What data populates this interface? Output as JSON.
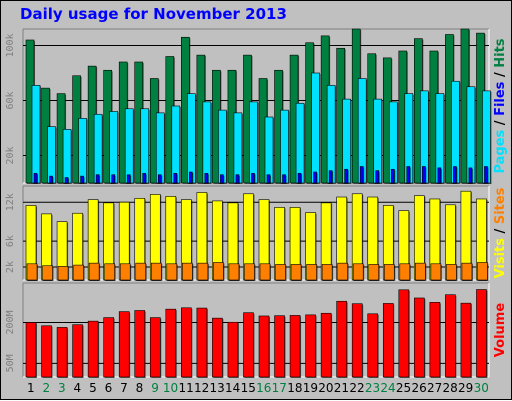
{
  "title": "Daily usage for November 2013",
  "colors": {
    "hits": "#008040",
    "files": "#0000ff",
    "pages": "#00e0ff",
    "visits": "#ffff00",
    "sites": "#ff8000",
    "volume": "#ff0000",
    "weekday_label": "#000000",
    "weekend_label": "#008040"
  },
  "chart_data": [
    {
      "type": "bar",
      "title": "Daily usage for November 2013",
      "categories": [
        "1",
        "2",
        "3",
        "4",
        "5",
        "6",
        "7",
        "8",
        "9",
        "10",
        "11",
        "12",
        "13",
        "14",
        "15",
        "16",
        "17",
        "18",
        "19",
        "20",
        "21",
        "22",
        "23",
        "24",
        "25",
        "26",
        "27",
        "28",
        "29",
        "30"
      ],
      "yticks": [
        {
          "value": 20000,
          "label": "20k"
        },
        {
          "value": 60000,
          "label": "60k"
        },
        {
          "value": 100000,
          "label": "100k"
        }
      ],
      "ylim": [
        0,
        112000
      ],
      "grid": true,
      "side_label": [
        {
          "text": "Pages",
          "color": "#00e0ff"
        },
        {
          "text": " / ",
          "color": "#000000"
        },
        {
          "text": "Files",
          "color": "#0000ff"
        },
        {
          "text": " / ",
          "color": "#000000"
        },
        {
          "text": "Hits",
          "color": "#008040"
        }
      ],
      "series": [
        {
          "name": "Hits",
          "values": [
            104000,
            69000,
            65000,
            78000,
            85000,
            82000,
            88000,
            88000,
            76000,
            92000,
            106000,
            93000,
            82000,
            82000,
            93000,
            76000,
            82000,
            93000,
            102000,
            107000,
            98000,
            112000,
            94000,
            91000,
            96000,
            105000,
            96000,
            108000,
            112000,
            109000
          ]
        },
        {
          "name": "Pages",
          "values": [
            71000,
            41000,
            39000,
            47000,
            50000,
            52000,
            54000,
            54000,
            51000,
            56000,
            65000,
            59000,
            53000,
            51000,
            59000,
            48000,
            53000,
            58000,
            80000,
            71000,
            61000,
            76000,
            61000,
            59000,
            65000,
            67000,
            65000,
            74000,
            70000,
            67000
          ]
        },
        {
          "name": "Files",
          "values": [
            7000,
            5000,
            4000,
            5000,
            6000,
            6000,
            6000,
            7000,
            6000,
            7000,
            8000,
            7000,
            6000,
            6000,
            7000,
            6000,
            6000,
            7000,
            8000,
            9000,
            10000,
            12000,
            9000,
            10000,
            12000,
            12000,
            11000,
            12000,
            11000,
            12000
          ]
        }
      ]
    },
    {
      "type": "bar",
      "categories": [
        "1",
        "2",
        "3",
        "4",
        "5",
        "6",
        "7",
        "8",
        "9",
        "10",
        "11",
        "12",
        "13",
        "14",
        "15",
        "16",
        "17",
        "18",
        "19",
        "20",
        "21",
        "22",
        "23",
        "24",
        "25",
        "26",
        "27",
        "28",
        "29",
        "30"
      ],
      "yticks": [
        {
          "value": 2000,
          "label": "2k"
        },
        {
          "value": 6000,
          "label": "6k"
        },
        {
          "value": 12000,
          "label": "12k"
        }
      ],
      "ylim": [
        0,
        14500
      ],
      "grid": true,
      "side_label": [
        {
          "text": "Visits",
          "color": "#ffff00"
        },
        {
          "text": " / ",
          "color": "#000000"
        },
        {
          "text": "Sites",
          "color": "#ff8000"
        }
      ],
      "series": [
        {
          "name": "Visits",
          "values": [
            11500,
            10200,
            9000,
            10300,
            12400,
            11900,
            12000,
            12600,
            13200,
            12900,
            12400,
            13500,
            12200,
            11900,
            13300,
            12400,
            11200,
            11200,
            10400,
            11900,
            12800,
            13300,
            12800,
            11500,
            10700,
            13000,
            12500,
            11600,
            13700,
            12500
          ]
        },
        {
          "name": "Sites",
          "values": [
            2500,
            2200,
            2100,
            2300,
            2600,
            2500,
            2500,
            2600,
            2600,
            2500,
            2600,
            2600,
            2700,
            2500,
            2500,
            2500,
            2400,
            2400,
            2400,
            2400,
            2600,
            2500,
            2400,
            2400,
            2500,
            2600,
            2500,
            2400,
            2600,
            2700
          ]
        }
      ]
    },
    {
      "type": "bar",
      "categories": [
        "1",
        "2",
        "3",
        "4",
        "5",
        "6",
        "7",
        "8",
        "9",
        "10",
        "11",
        "12",
        "13",
        "14",
        "15",
        "16",
        "17",
        "18",
        "19",
        "20",
        "21",
        "22",
        "23",
        "24",
        "25",
        "26",
        "27",
        "28",
        "29",
        "30"
      ],
      "yticks": [
        {
          "value": 50,
          "label": "50M"
        },
        {
          "value": 200,
          "label": "200M"
        }
      ],
      "ylim": [
        0,
        345
      ],
      "grid": true,
      "side_label": [
        {
          "text": "Volume",
          "color": "#ff0000"
        }
      ],
      "series": [
        {
          "name": "Volume",
          "values": [
            200,
            188,
            182,
            192,
            205,
            218,
            240,
            244,
            218,
            249,
            254,
            253,
            216,
            201,
            236,
            224,
            225,
            226,
            228,
            234,
            278,
            269,
            232,
            270,
            320,
            290,
            274,
            302,
            271,
            321
          ]
        }
      ]
    }
  ],
  "day_labels": [
    {
      "text": "1",
      "weekend": false
    },
    {
      "text": "2",
      "weekend": true
    },
    {
      "text": "3",
      "weekend": true
    },
    {
      "text": "4",
      "weekend": false
    },
    {
      "text": "5",
      "weekend": false
    },
    {
      "text": "6",
      "weekend": false
    },
    {
      "text": "7",
      "weekend": false
    },
    {
      "text": "8",
      "weekend": false
    },
    {
      "text": "9",
      "weekend": true
    },
    {
      "text": "10",
      "weekend": true
    },
    {
      "text": "11",
      "weekend": false
    },
    {
      "text": "12",
      "weekend": false
    },
    {
      "text": "13",
      "weekend": false
    },
    {
      "text": "14",
      "weekend": false
    },
    {
      "text": "15",
      "weekend": false
    },
    {
      "text": "16",
      "weekend": true
    },
    {
      "text": "17",
      "weekend": true
    },
    {
      "text": "18",
      "weekend": false
    },
    {
      "text": "19",
      "weekend": false
    },
    {
      "text": "20",
      "weekend": false
    },
    {
      "text": "21",
      "weekend": false
    },
    {
      "text": "22",
      "weekend": false
    },
    {
      "text": "23",
      "weekend": true
    },
    {
      "text": "24",
      "weekend": true
    },
    {
      "text": "25",
      "weekend": false
    },
    {
      "text": "26",
      "weekend": false
    },
    {
      "text": "27",
      "weekend": false
    },
    {
      "text": "28",
      "weekend": false
    },
    {
      "text": "29",
      "weekend": false
    },
    {
      "text": "30",
      "weekend": true
    }
  ]
}
